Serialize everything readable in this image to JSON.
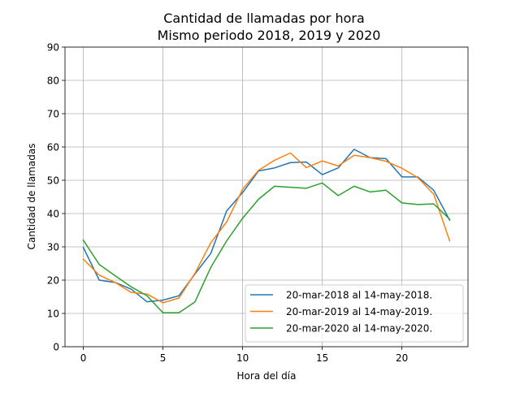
{
  "chart_data": {
    "type": "line",
    "title": "Cantidad de llamadas por hora",
    "subtitle": "Mismo periodo 2018, 2019 y 2020",
    "xlabel": "Hora del día",
    "ylabel": "Cantidad de llamadas",
    "xlim": [
      -1.15,
      24.15
    ],
    "ylim": [
      0,
      90
    ],
    "xticks": [
      0,
      5,
      10,
      15,
      20
    ],
    "yticks": [
      0,
      10,
      20,
      30,
      40,
      50,
      60,
      70,
      80,
      90
    ],
    "grid": true,
    "legend_position": "lower-right",
    "x": [
      0,
      1,
      2,
      3,
      4,
      5,
      6,
      7,
      8,
      9,
      10,
      11,
      12,
      13,
      14,
      15,
      16,
      17,
      18,
      19,
      20,
      21,
      22,
      23
    ],
    "series": [
      {
        "name": "20-mar-2018 al 14-may-2018.",
        "color": "#1f77b4",
        "values": [
          29.8,
          20.0,
          19.3,
          17.3,
          13.5,
          14.0,
          15.3,
          21.8,
          28.0,
          40.8,
          46.3,
          52.8,
          53.7,
          55.3,
          55.5,
          51.7,
          53.7,
          59.3,
          56.8,
          56.5,
          51.0,
          51.0,
          47.0,
          38.0
        ]
      },
      {
        "name": "20-mar-2019 al 14-may-2019.",
        "color": "#ff7f0e",
        "values": [
          26.3,
          21.5,
          19.3,
          16.3,
          15.8,
          13.2,
          14.6,
          22.0,
          31.2,
          37.5,
          47.3,
          53.0,
          56.0,
          58.2,
          53.8,
          55.8,
          54.3,
          57.5,
          56.8,
          55.7,
          53.6,
          50.8,
          45.8,
          31.8
        ]
      },
      {
        "name": "20-mar-2020 al 14-may-2020.",
        "color": "#2ca02c",
        "values": [
          32.0,
          24.7,
          21.3,
          18.0,
          15.3,
          10.2,
          10.2,
          13.4,
          23.8,
          31.8,
          38.6,
          44.3,
          48.2,
          47.9,
          47.6,
          49.2,
          45.4,
          48.2,
          46.5,
          47.0,
          43.2,
          42.7,
          42.9,
          38.3
        ]
      }
    ]
  }
}
